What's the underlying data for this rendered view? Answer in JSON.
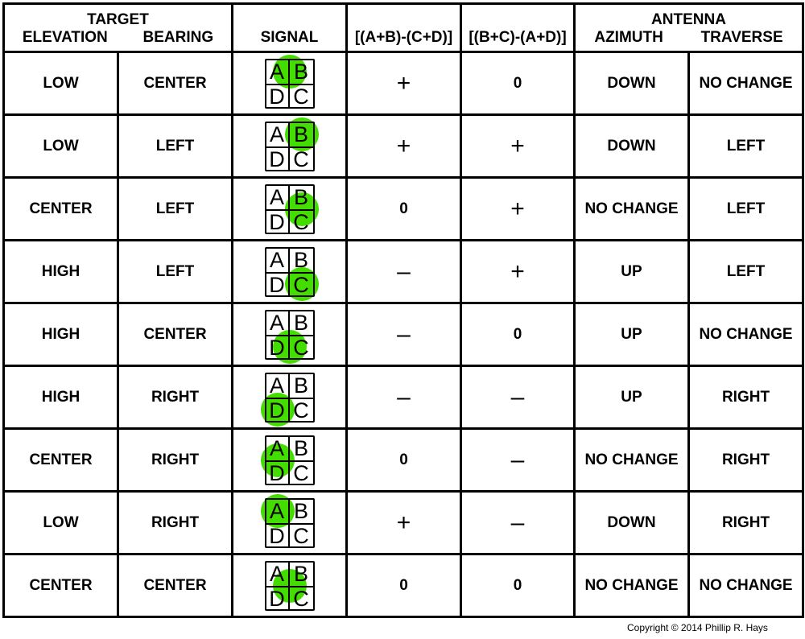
{
  "header": {
    "target": "TARGET",
    "elevation": "ELEVATION",
    "bearing": "BEARING",
    "signal": "SIGNAL",
    "formula1": "[(A+B)-(C+D)]",
    "formula2": "[(B+C)-(A+D)]",
    "antenna": "ANTENNA",
    "azimuth": "AZIMUTH",
    "traverse": "TRAVERSE"
  },
  "quadrant_labels": [
    "A",
    "B",
    "D",
    "C"
  ],
  "highlight_color": "#44dd00",
  "rows": [
    {
      "elevation": "LOW",
      "bearing": "CENTER",
      "spot": "AB",
      "f1": "+",
      "f2": "0",
      "azimuth": "DOWN",
      "traverse": "NO CHANGE"
    },
    {
      "elevation": "LOW",
      "bearing": "LEFT",
      "spot": "B",
      "f1": "+",
      "f2": "+",
      "azimuth": "DOWN",
      "traverse": "LEFT"
    },
    {
      "elevation": "CENTER",
      "bearing": "LEFT",
      "spot": "BC",
      "f1": "0",
      "f2": "+",
      "azimuth": "NO CHANGE",
      "traverse": "LEFT"
    },
    {
      "elevation": "HIGH",
      "bearing": "LEFT",
      "spot": "C",
      "f1": "–",
      "f2": "+",
      "azimuth": "UP",
      "traverse": "LEFT"
    },
    {
      "elevation": "HIGH",
      "bearing": "CENTER",
      "spot": "DC",
      "f1": "–",
      "f2": "0",
      "azimuth": "UP",
      "traverse": "NO CHANGE"
    },
    {
      "elevation": "HIGH",
      "bearing": "RIGHT",
      "spot": "D",
      "f1": "–",
      "f2": "–",
      "azimuth": "UP",
      "traverse": "RIGHT"
    },
    {
      "elevation": "CENTER",
      "bearing": "RIGHT",
      "spot": "AD",
      "f1": "0",
      "f2": "–",
      "azimuth": "NO CHANGE",
      "traverse": "RIGHT"
    },
    {
      "elevation": "LOW",
      "bearing": "RIGHT",
      "spot": "A",
      "f1": "+",
      "f2": "–",
      "azimuth": "DOWN",
      "traverse": "RIGHT"
    },
    {
      "elevation": "CENTER",
      "bearing": "CENTER",
      "spot": "ABCD",
      "f1": "0",
      "f2": "0",
      "azimuth": "NO CHANGE",
      "traverse": "NO CHANGE"
    }
  ],
  "copyright": "Copyright © 2014 Phillip R. Hays"
}
